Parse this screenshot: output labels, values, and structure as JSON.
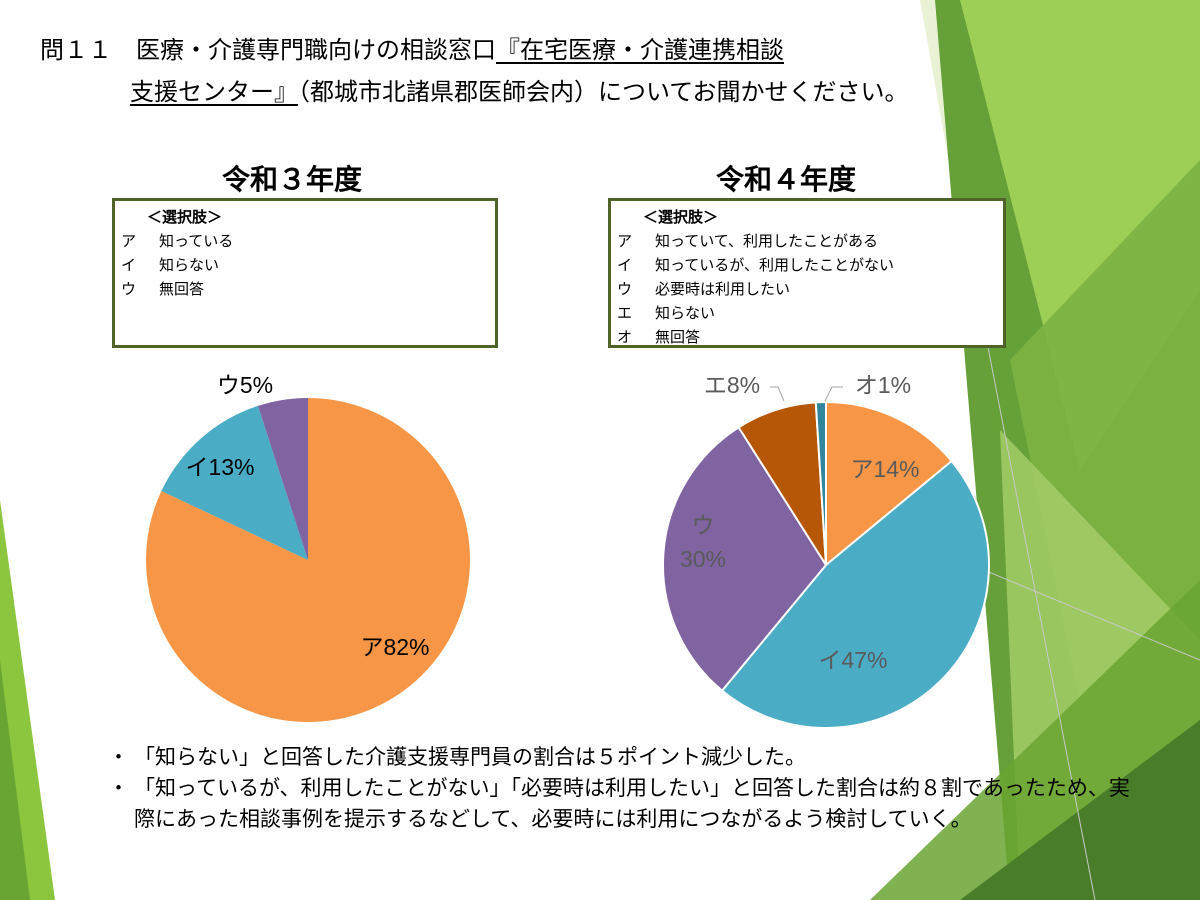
{
  "title": {
    "line1_plain": "問１１　医療・介護専門職向けの相談窓口",
    "line1_underlined": "『在宅医療・介護連携相談",
    "line2_underlined": "支援センター』",
    "line2_plain": "（都城市北諸県郡医師会内）についてお聞かせください。"
  },
  "charts": [
    {
      "heading": "令和３年度",
      "legend": {
        "header": "＜選択肢＞",
        "items": [
          {
            "key": "ア",
            "text": "知っている"
          },
          {
            "key": "イ",
            "text": "知らない"
          },
          {
            "key": "ウ",
            "text": "無回答"
          }
        ]
      }
    },
    {
      "heading": "令和４年度",
      "legend": {
        "header": "＜選択肢＞",
        "items": [
          {
            "key": "ア",
            "text": "知っていて、利用したことがある"
          },
          {
            "key": "イ",
            "text": "知っているが、利用したことがない"
          },
          {
            "key": "ウ",
            "text": "必要時は利用したい"
          },
          {
            "key": "エ",
            "text": "知らない"
          },
          {
            "key": "オ",
            "text": "無回答"
          }
        ]
      }
    }
  ],
  "chart_data": [
    {
      "type": "pie",
      "title": "令和３年度",
      "categories": [
        "ア",
        "イ",
        "ウ"
      ],
      "values": [
        82,
        13,
        5
      ],
      "labels": [
        "ア82%",
        "イ13%",
        "ウ5%"
      ],
      "colors": [
        "#f79646",
        "#4bacc6",
        "#8064a2"
      ]
    },
    {
      "type": "pie",
      "title": "令和４年度",
      "categories": [
        "ア",
        "イ",
        "ウ",
        "エ",
        "オ"
      ],
      "values": [
        14,
        47,
        30,
        8,
        1
      ],
      "labels": [
        "ア14%",
        "イ47%",
        "ウ\n30%",
        "エ8%",
        "オ1%"
      ],
      "colors": [
        "#f79646",
        "#4bacc6",
        "#8064a2",
        "#b65708",
        "#31859c"
      ]
    }
  ],
  "notes": [
    "「知らない」と回答した介護支援専門員の割合は５ポイント減少した。",
    "「知っているが、利用したことがない」「必要時は利用したい」と回答した割合は約８割であったため、実際にあった相談事例を提示するなどして、必要時には利用につながるよう検討していく。"
  ],
  "theme": {
    "legend_border": "#4f6228",
    "decor_greens": [
      "#8cc63f",
      "#6aa533",
      "#4a7d2a",
      "#b5d27a"
    ]
  }
}
